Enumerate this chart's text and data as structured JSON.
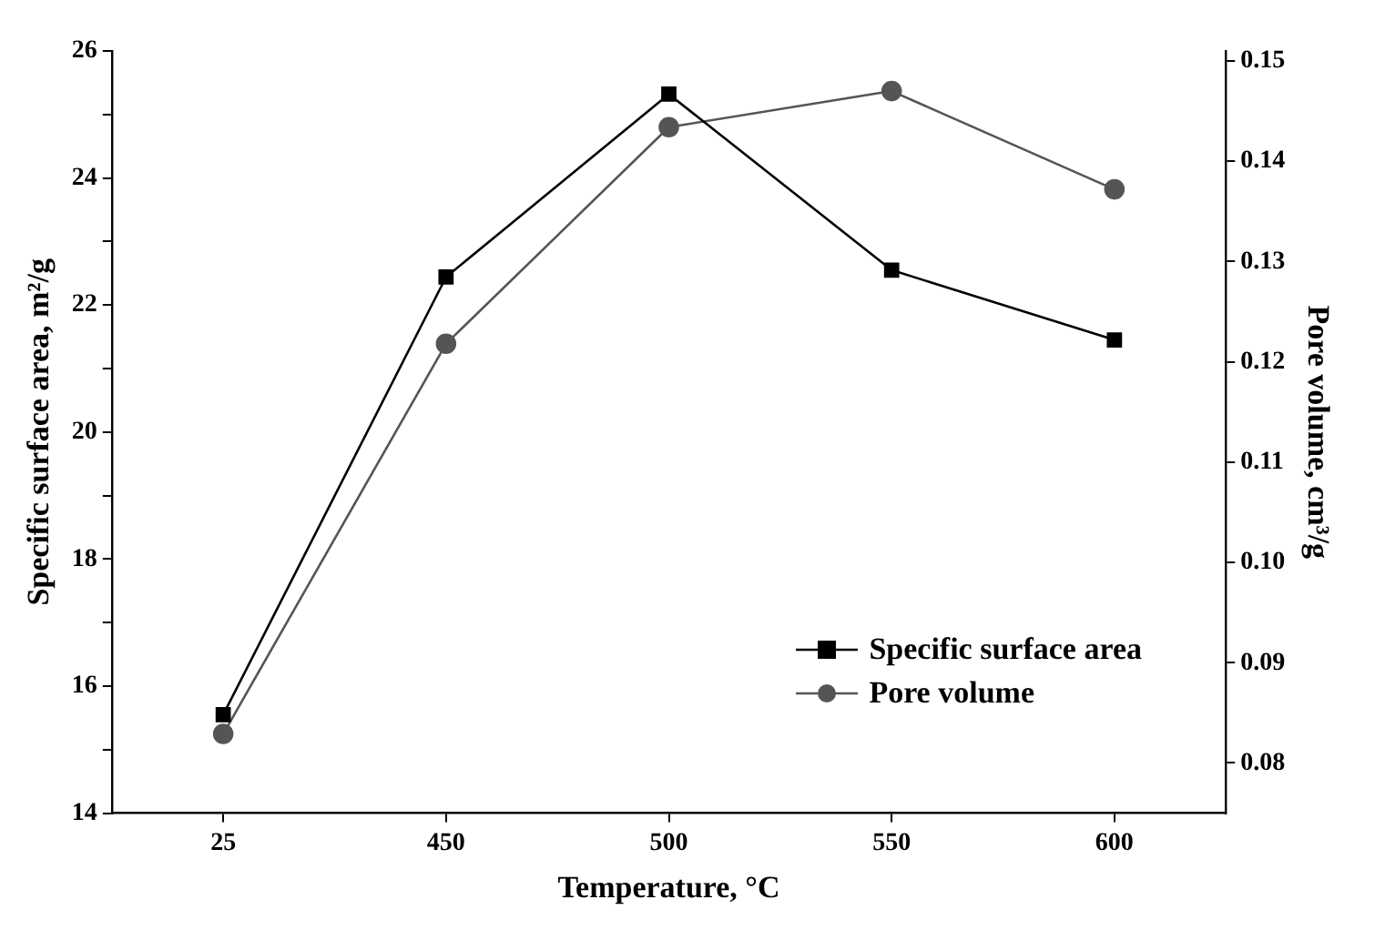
{
  "chart_data": {
    "type": "line",
    "xlabel": "Temperature, °C",
    "ylabel": "Specific surface area, m²/g",
    "y2label": "Pore volume, cm³/g",
    "categories": [
      "25",
      "450",
      "500",
      "550",
      "600"
    ],
    "series": [
      {
        "name": "Specific surface area",
        "color": "#000000",
        "marker": "square",
        "values": [
          15.55,
          22.44,
          25.32,
          22.55,
          21.45
        ]
      },
      {
        "name": "Pore volume",
        "color": "#555555",
        "marker": "circle",
        "axis": "y2",
        "values": [
          0.0829,
          0.1218,
          0.1434,
          0.147,
          0.1372
        ]
      }
    ],
    "ylim": [
      14,
      26
    ],
    "yticks": [
      14,
      {
        "value": 15,
        "label": null
      },
      16,
      {
        "value": 17,
        "label": null
      },
      18,
      {
        "value": 19,
        "label": null
      },
      20,
      {
        "value": 21,
        "label": null
      },
      22,
      {
        "value": 23,
        "label": null
      },
      24,
      {
        "value": 25,
        "label": null
      },
      26
    ],
    "y2lim": [
      0.075,
      0.151
    ],
    "y2ticks": [
      0.08,
      0.09,
      {
        "value": 0.1,
        "label": "0.10"
      },
      0.11,
      0.12,
      0.13,
      0.14,
      0.15
    ],
    "grid": false,
    "legend": "bottom right"
  }
}
